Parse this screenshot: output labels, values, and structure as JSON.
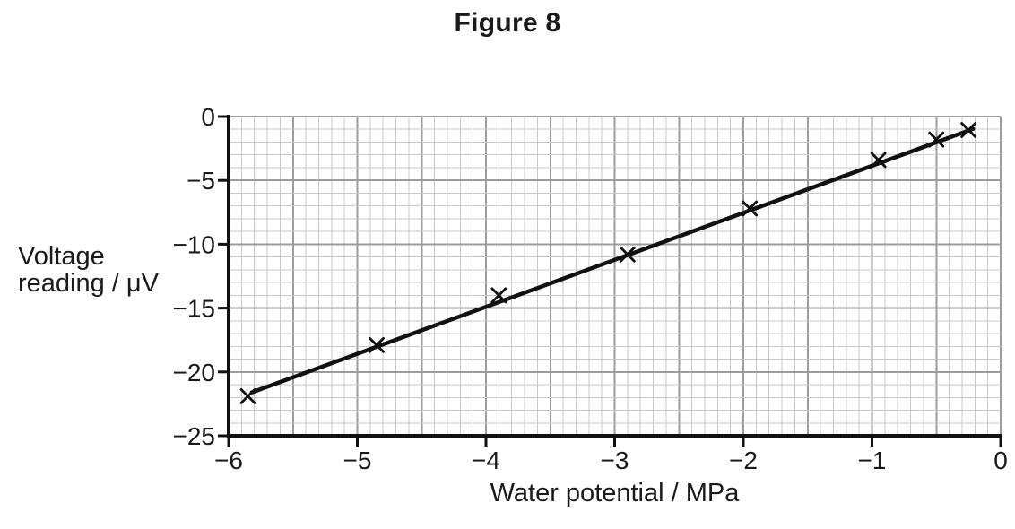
{
  "title": "Figure 8",
  "chart_data": {
    "type": "scatter",
    "title": "Figure 8",
    "xlabel": "Water potential / MPa",
    "ylabel": "Voltage reading / μV",
    "ylabel_lines": [
      "Voltage",
      "reading / μV"
    ],
    "xlim": [
      -6,
      0
    ],
    "ylim": [
      -25,
      0
    ],
    "x_ticks": [
      -6,
      -5,
      -4,
      -3,
      -2,
      -1,
      0
    ],
    "x_tick_labels": [
      "−6",
      "−5",
      "−4",
      "−3",
      "−2",
      "−1",
      "0"
    ],
    "y_ticks": [
      0,
      -5,
      -10,
      -15,
      -20,
      -25
    ],
    "y_tick_labels": [
      "0",
      "−5",
      "−10",
      "−15",
      "−20",
      "−25"
    ],
    "grid": {
      "on": true,
      "minor_step_x": 0.1,
      "major_step_x": 0.5,
      "minor_step_y": 1,
      "major_step_y": 5
    },
    "marker": "x-cross",
    "points": [
      {
        "x": -5.85,
        "y": -21.9
      },
      {
        "x": -4.85,
        "y": -17.9
      },
      {
        "x": -3.9,
        "y": -14.0
      },
      {
        "x": -2.9,
        "y": -10.8
      },
      {
        "x": -1.95,
        "y": -7.2
      },
      {
        "x": -0.95,
        "y": -3.4
      },
      {
        "x": -0.5,
        "y": -1.8
      },
      {
        "x": -0.25,
        "y": -1.05
      }
    ],
    "fit_line": {
      "x1": -5.82,
      "y1": -21.6,
      "x2": -0.215,
      "y2": -0.97
    },
    "legend": "none",
    "colors": {
      "axis": "#111111",
      "grid_minor": "#c9c9c9",
      "grid_major": "#9c9c9c",
      "line": "#111111",
      "marker": "#111111",
      "text": "#1a1a1a",
      "background": "#ffffff"
    }
  }
}
